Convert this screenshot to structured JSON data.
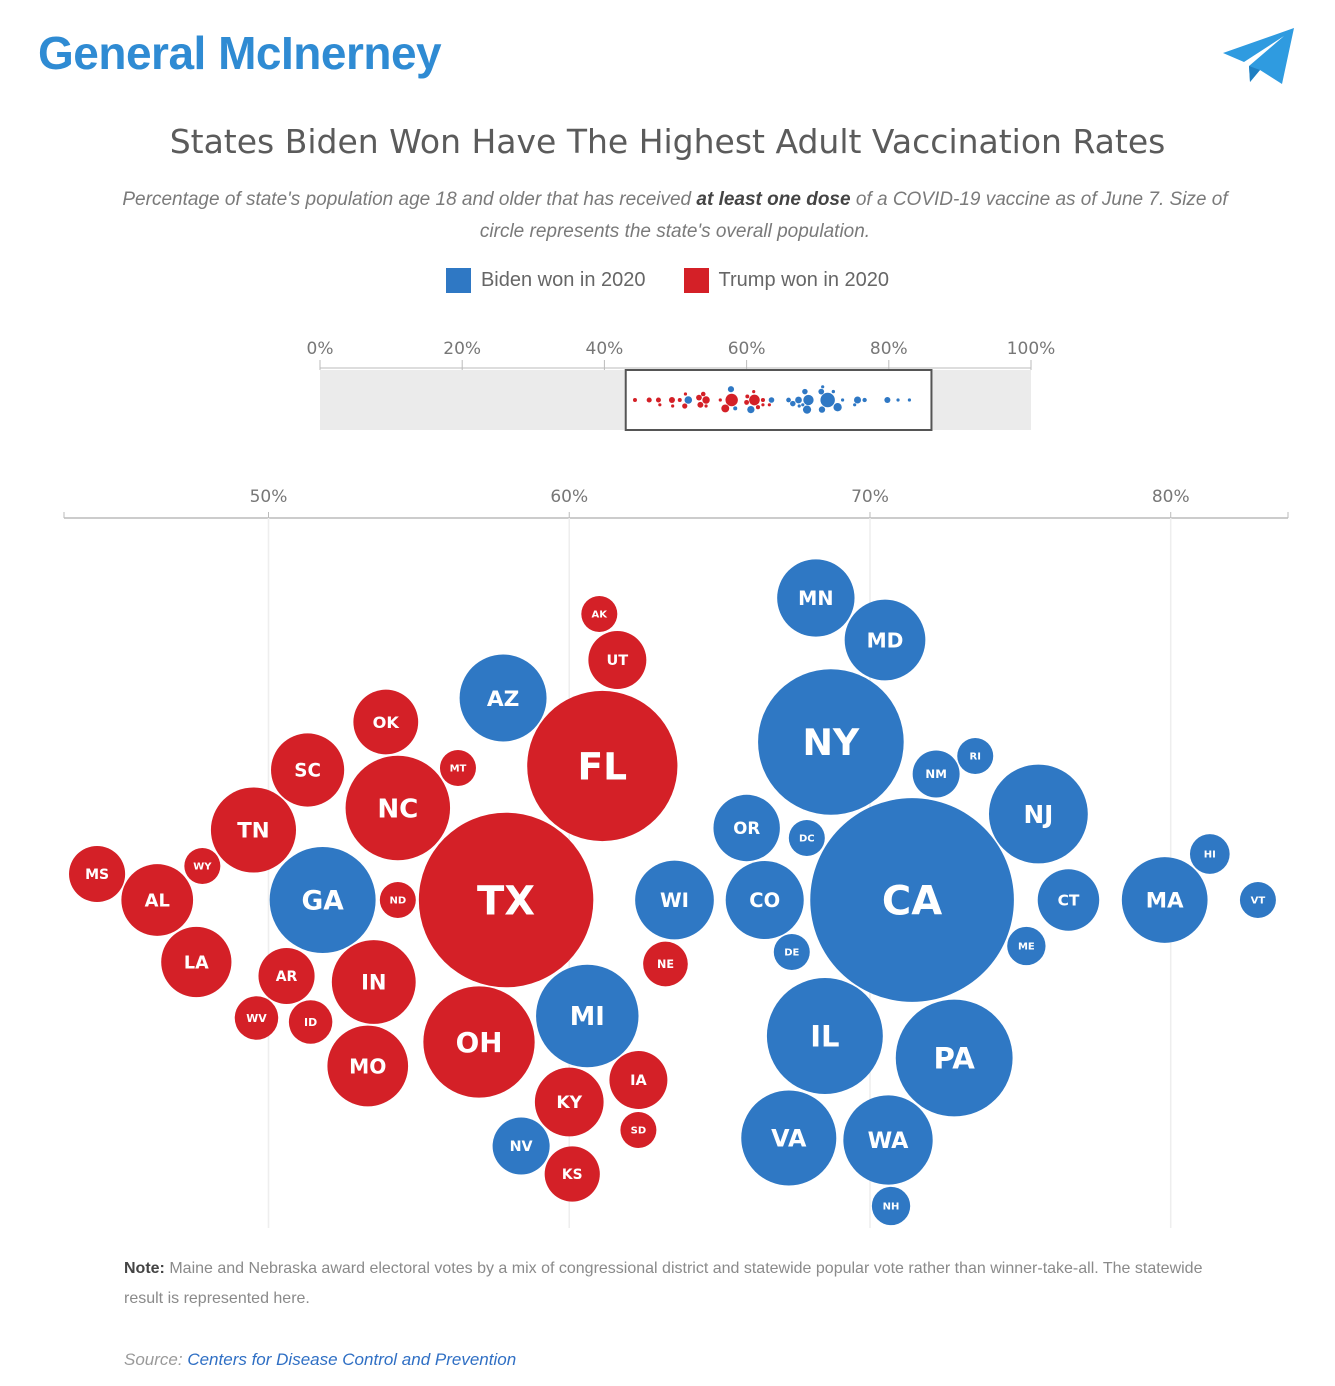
{
  "header": {
    "channel_name": "General McInerney",
    "icon": "telegram-icon"
  },
  "figure": {
    "note_label": "Note:",
    "note_text": "Maine and Nebraska award electoral votes by a mix of congressional district and statewide popular vote rather than winner-take-all. The statewide result is represented here.",
    "source_label": "Source:",
    "source_text": "Centers for Disease Control and Prevention"
  },
  "colors": {
    "biden": "#2f78c4",
    "trump": "#d42027",
    "overview_bg": "#ebebeb",
    "axis": "#bbbbbb"
  },
  "chart_data": {
    "type": "bubble-beeswarm",
    "title": "States Biden Won Have The Highest Adult Vaccination Rates",
    "subtitle": {
      "before": "Percentage of state's population age 18 and older that has received ",
      "bold": "at least one dose",
      "after": " of a COVID-19 vaccine as of June 7. Size of circle represents the state's overall population."
    },
    "legend": [
      {
        "name": "Biden won in 2020",
        "color": "#2f78c4"
      },
      {
        "name": "Trump won in 2020",
        "color": "#d42027"
      }
    ],
    "overview_axis": {
      "ticks": [
        "0%",
        "20%",
        "40%",
        "60%",
        "80%",
        "100%"
      ],
      "range": [
        0,
        100
      ],
      "selection": [
        43,
        86
      ]
    },
    "main_axis": {
      "ticks": [
        "50%",
        "60%",
        "70%",
        "80%"
      ],
      "range": [
        43.2,
        83.9
      ],
      "grid": true,
      "legend_position": "top-center"
    },
    "states": [
      {
        "label": "WA",
        "vax": 70.6,
        "pop": 7.6,
        "party": "biden"
      },
      {
        "label": "MN",
        "vax": 68.2,
        "pop": 5.7,
        "party": "biden"
      },
      {
        "label": "MD",
        "vax": 70.5,
        "pop": 6.2,
        "party": "biden"
      },
      {
        "label": "CO",
        "vax": 66.5,
        "pop": 5.8,
        "party": "biden"
      },
      {
        "label": "NY",
        "vax": 68.7,
        "pop": 20.2,
        "party": "biden"
      },
      {
        "label": "PA",
        "vax": 72.8,
        "pop": 13.0,
        "party": "biden"
      },
      {
        "label": "RI",
        "vax": 73.5,
        "pop": 1.1,
        "party": "biden"
      },
      {
        "label": "NJ",
        "vax": 75.6,
        "pop": 9.3,
        "party": "biden"
      },
      {
        "label": "MA",
        "vax": 79.8,
        "pop": 7.0,
        "party": "biden"
      },
      {
        "label": "HI",
        "vax": 81.3,
        "pop": 1.5,
        "party": "biden"
      },
      {
        "label": "VT",
        "vax": 82.9,
        "pop": 0.6,
        "party": "biden"
      },
      {
        "label": "DC",
        "vax": 67.9,
        "pop": 0.7,
        "party": "biden"
      },
      {
        "label": "OR",
        "vax": 65.9,
        "pop": 4.2,
        "party": "biden"
      },
      {
        "label": "CA",
        "vax": 71.4,
        "pop": 39.5,
        "party": "biden"
      },
      {
        "label": "DE",
        "vax": 67.4,
        "pop": 1.0,
        "party": "biden"
      },
      {
        "label": "CT",
        "vax": 76.6,
        "pop": 3.6,
        "party": "biden"
      },
      {
        "label": "ME",
        "vax": 75.2,
        "pop": 1.4,
        "party": "biden"
      },
      {
        "label": "VA",
        "vax": 67.3,
        "pop": 8.6,
        "party": "biden"
      },
      {
        "label": "NH",
        "vax": 70.7,
        "pop": 1.4,
        "party": "biden"
      },
      {
        "label": "NM",
        "vax": 72.2,
        "pop": 2.1,
        "party": "biden"
      },
      {
        "label": "IL",
        "vax": 68.5,
        "pop": 12.8,
        "party": "biden"
      },
      {
        "label": "NV",
        "vax": 58.4,
        "pop": 3.1,
        "party": "biden"
      },
      {
        "label": "GA",
        "vax": 51.8,
        "pop": 10.7,
        "party": "biden"
      },
      {
        "label": "AZ",
        "vax": 57.8,
        "pop": 7.2,
        "party": "biden"
      },
      {
        "label": "WI",
        "vax": 63.5,
        "pop": 5.9,
        "party": "biden"
      },
      {
        "label": "MI",
        "vax": 60.6,
        "pop": 10.0,
        "party": "biden"
      },
      {
        "label": "MT",
        "vax": 56.3,
        "pop": 1.1,
        "party": "trump"
      },
      {
        "label": "OH",
        "vax": 57.0,
        "pop": 11.8,
        "party": "trump"
      },
      {
        "label": "OK",
        "vax": 53.9,
        "pop": 4.0,
        "party": "trump"
      },
      {
        "label": "ND",
        "vax": 54.3,
        "pop": 0.8,
        "party": "trump"
      },
      {
        "label": "FL",
        "vax": 61.1,
        "pop": 21.5,
        "party": "trump"
      },
      {
        "label": "WV",
        "vax": 49.6,
        "pop": 1.8,
        "party": "trump"
      },
      {
        "label": "LA",
        "vax": 47.6,
        "pop": 4.7,
        "party": "trump"
      },
      {
        "label": "AR",
        "vax": 50.6,
        "pop": 3.0,
        "party": "trump"
      },
      {
        "label": "NC",
        "vax": 54.3,
        "pop": 10.4,
        "party": "trump"
      },
      {
        "label": "SD",
        "vax": 62.3,
        "pop": 0.9,
        "party": "trump"
      },
      {
        "label": "KY",
        "vax": 60.0,
        "pop": 4.5,
        "party": "trump"
      },
      {
        "label": "MS",
        "vax": 44.3,
        "pop": 3.0,
        "party": "trump"
      },
      {
        "label": "WY",
        "vax": 47.8,
        "pop": 0.6,
        "party": "trump"
      },
      {
        "label": "AL",
        "vax": 46.3,
        "pop": 4.9,
        "party": "trump"
      },
      {
        "label": "TN",
        "vax": 49.5,
        "pop": 6.9,
        "party": "trump"
      },
      {
        "label": "ID",
        "vax": 51.4,
        "pop": 1.8,
        "party": "trump"
      },
      {
        "label": "AK",
        "vax": 61.0,
        "pop": 0.7,
        "party": "trump"
      },
      {
        "label": "IN",
        "vax": 53.5,
        "pop": 6.7,
        "party": "trump"
      },
      {
        "label": "TX",
        "vax": 57.9,
        "pop": 29.0,
        "party": "trump"
      },
      {
        "label": "UT",
        "vax": 61.6,
        "pop": 3.2,
        "party": "trump"
      },
      {
        "label": "NE",
        "vax": 63.2,
        "pop": 1.9,
        "party": "trump"
      },
      {
        "label": "SC",
        "vax": 51.3,
        "pop": 5.1,
        "party": "trump"
      },
      {
        "label": "IA",
        "vax": 62.3,
        "pop": 3.2,
        "party": "trump"
      },
      {
        "label": "MO",
        "vax": 53.3,
        "pop": 6.2,
        "party": "trump"
      },
      {
        "label": "KS",
        "vax": 60.1,
        "pop": 2.9,
        "party": "trump"
      }
    ]
  }
}
